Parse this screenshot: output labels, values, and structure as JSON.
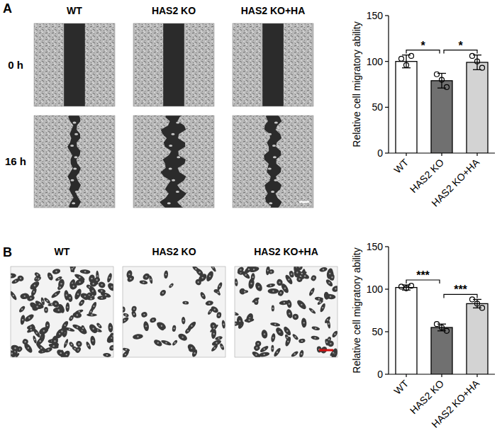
{
  "figure": {
    "A": {
      "letter": "A",
      "columns": [
        "WT",
        "HAS2 KO",
        "HAS2 KO+HA"
      ],
      "rows": [
        "0 h",
        "16 h"
      ]
    },
    "B": {
      "letter": "B",
      "columns": [
        "WT",
        "HAS2 KO",
        "HAS2 KO+HA"
      ]
    }
  },
  "chart_data": [
    {
      "type": "bar",
      "y_label": "Relative cell migratory ability",
      "categories": [
        "WT",
        "HAS2 KO",
        "HAS2 KO+HA"
      ],
      "values": [
        100,
        79,
        99
      ],
      "errors": [
        7,
        8,
        8
      ],
      "points": [
        [
          103,
          96,
          106
        ],
        [
          86,
          80,
          72
        ],
        [
          106,
          100,
          93
        ]
      ],
      "colors": [
        "#ffffff",
        "#707070",
        "#d3d3d3"
      ],
      "ylim": [
        0,
        150
      ],
      "yticks": [
        0,
        50,
        100,
        150
      ],
      "annotations": [
        {
          "between": [
            0,
            1
          ],
          "label": "*"
        },
        {
          "between": [
            1,
            2
          ],
          "label": "*"
        }
      ]
    },
    {
      "type": "bar",
      "y_label": "Relative cell migratory ability",
      "categories": [
        "WT",
        "HAS2 KO",
        "HAS2 KO+HA"
      ],
      "values": [
        102,
        55,
        83
      ],
      "errors": [
        3,
        4,
        5
      ],
      "points": [
        [
          103,
          101,
          104
        ],
        [
          59,
          55,
          51
        ],
        [
          88,
          83,
          78
        ]
      ],
      "colors": [
        "#ffffff",
        "#707070",
        "#d3d3d3"
      ],
      "ylim": [
        0,
        150
      ],
      "yticks": [
        0,
        50,
        100,
        150
      ],
      "annotations": [
        {
          "between": [
            0,
            1
          ],
          "label": "***"
        },
        {
          "between": [
            1,
            2
          ],
          "label": "***"
        }
      ]
    }
  ]
}
